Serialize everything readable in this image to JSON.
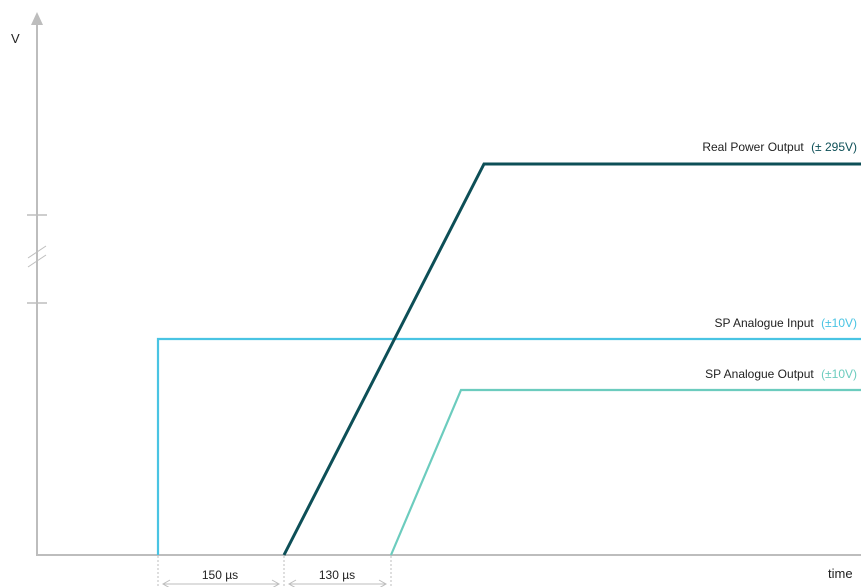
{
  "axes": {
    "y_label": "V",
    "x_label": "time"
  },
  "intervals": {
    "first": "150 µs",
    "second": "130 µs"
  },
  "series": [
    {
      "key": "real_power",
      "name": "Real Power Output",
      "range": "(± 295V)",
      "color": "#0d4f57"
    },
    {
      "key": "analogue_input",
      "name": "SP Analogue Input",
      "range": "(±10V)",
      "color": "#49c4e3"
    },
    {
      "key": "analogue_output",
      "name": "SP Analogue Output",
      "range": "(±10V)",
      "color": "#6cccbe"
    }
  ],
  "colors": {
    "axis": "#bdbdbd",
    "dimension": "#bdbdbd",
    "text": "#222222"
  }
}
